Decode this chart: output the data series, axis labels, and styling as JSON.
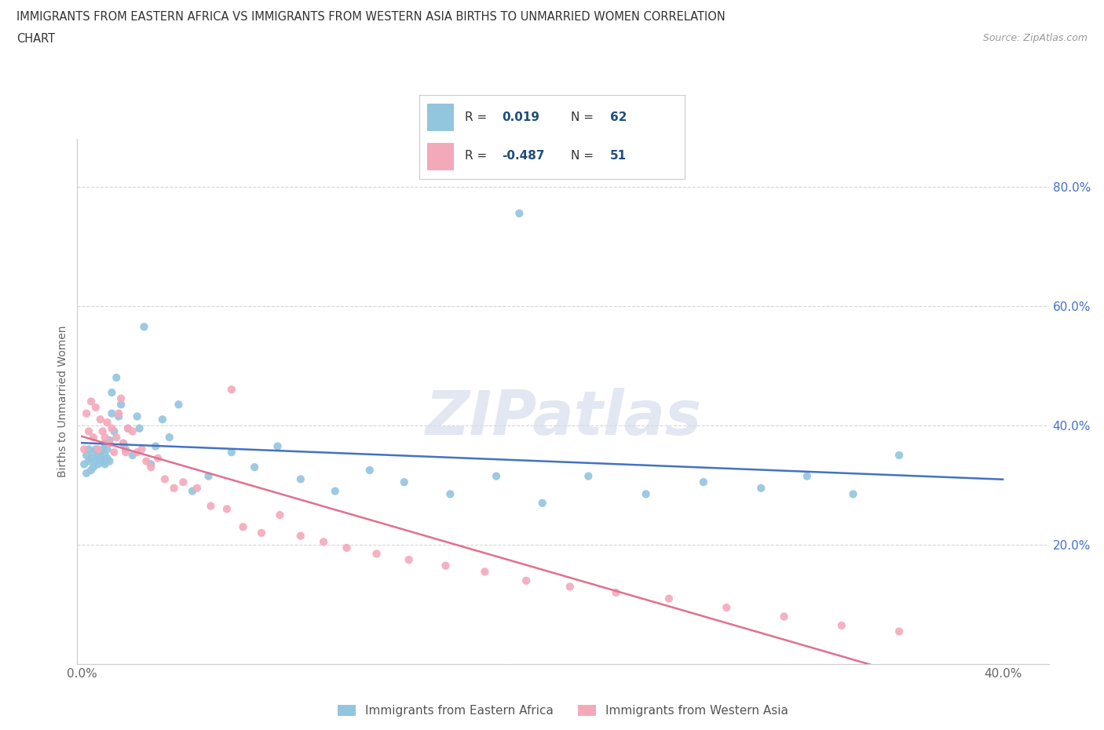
{
  "title_line1": "IMMIGRANTS FROM EASTERN AFRICA VS IMMIGRANTS FROM WESTERN ASIA BIRTHS TO UNMARRIED WOMEN CORRELATION",
  "title_line2": "CHART",
  "source": "Source: ZipAtlas.com",
  "ylabel": "Births to Unmarried Women",
  "xlim": [
    -0.002,
    0.42
  ],
  "ylim": [
    0.0,
    0.88
  ],
  "xticks": [
    0.0,
    0.1,
    0.2,
    0.3,
    0.4
  ],
  "yticks": [
    0.0,
    0.2,
    0.4,
    0.6,
    0.8
  ],
  "blue_R": 0.019,
  "blue_N": 62,
  "pink_R": -0.487,
  "pink_N": 51,
  "blue_color": "#92c5de",
  "pink_color": "#f4a9bb",
  "blue_line_color": "#4472c4",
  "pink_line_color": "#e07090",
  "legend_label_blue": "Immigrants from Eastern Africa",
  "legend_label_pink": "Immigrants from Western Asia",
  "watermark": "ZIPatlas",
  "background_color": "#ffffff",
  "legend_text_color": "#1f4e79",
  "ytick_color": "#4472c4",
  "blue_scatter_x": [
    0.001,
    0.002,
    0.002,
    0.003,
    0.003,
    0.004,
    0.004,
    0.005,
    0.005,
    0.006,
    0.006,
    0.007,
    0.007,
    0.008,
    0.008,
    0.009,
    0.009,
    0.01,
    0.01,
    0.01,
    0.011,
    0.011,
    0.012,
    0.012,
    0.013,
    0.013,
    0.014,
    0.015,
    0.016,
    0.017,
    0.018,
    0.019,
    0.02,
    0.022,
    0.024,
    0.025,
    0.027,
    0.03,
    0.032,
    0.035,
    0.038,
    0.042,
    0.048,
    0.055,
    0.065,
    0.075,
    0.085,
    0.095,
    0.11,
    0.125,
    0.14,
    0.16,
    0.18,
    0.2,
    0.22,
    0.245,
    0.27,
    0.295,
    0.315,
    0.335,
    0.355,
    0.19
  ],
  "blue_scatter_y": [
    0.335,
    0.32,
    0.35,
    0.34,
    0.36,
    0.325,
    0.345,
    0.355,
    0.33,
    0.34,
    0.36,
    0.35,
    0.335,
    0.345,
    0.355,
    0.34,
    0.36,
    0.335,
    0.35,
    0.37,
    0.345,
    0.36,
    0.375,
    0.34,
    0.42,
    0.455,
    0.39,
    0.48,
    0.415,
    0.435,
    0.37,
    0.36,
    0.395,
    0.35,
    0.415,
    0.395,
    0.565,
    0.335,
    0.365,
    0.41,
    0.38,
    0.435,
    0.29,
    0.315,
    0.355,
    0.33,
    0.365,
    0.31,
    0.29,
    0.325,
    0.305,
    0.285,
    0.315,
    0.27,
    0.315,
    0.285,
    0.305,
    0.295,
    0.315,
    0.285,
    0.35,
    0.755
  ],
  "pink_scatter_x": [
    0.001,
    0.002,
    0.003,
    0.004,
    0.005,
    0.006,
    0.007,
    0.008,
    0.009,
    0.01,
    0.011,
    0.012,
    0.013,
    0.014,
    0.015,
    0.016,
    0.017,
    0.018,
    0.019,
    0.02,
    0.022,
    0.024,
    0.026,
    0.028,
    0.03,
    0.033,
    0.036,
    0.04,
    0.044,
    0.05,
    0.056,
    0.063,
    0.07,
    0.078,
    0.086,
    0.095,
    0.105,
    0.115,
    0.128,
    0.142,
    0.158,
    0.175,
    0.193,
    0.212,
    0.232,
    0.255,
    0.28,
    0.305,
    0.33,
    0.355,
    0.065
  ],
  "pink_scatter_y": [
    0.36,
    0.42,
    0.39,
    0.44,
    0.38,
    0.43,
    0.36,
    0.41,
    0.39,
    0.38,
    0.405,
    0.37,
    0.395,
    0.355,
    0.38,
    0.42,
    0.445,
    0.37,
    0.355,
    0.395,
    0.39,
    0.355,
    0.36,
    0.34,
    0.33,
    0.345,
    0.31,
    0.295,
    0.305,
    0.295,
    0.265,
    0.26,
    0.23,
    0.22,
    0.25,
    0.215,
    0.205,
    0.195,
    0.185,
    0.175,
    0.165,
    0.155,
    0.14,
    0.13,
    0.12,
    0.11,
    0.095,
    0.08,
    0.065,
    0.055,
    0.46
  ]
}
